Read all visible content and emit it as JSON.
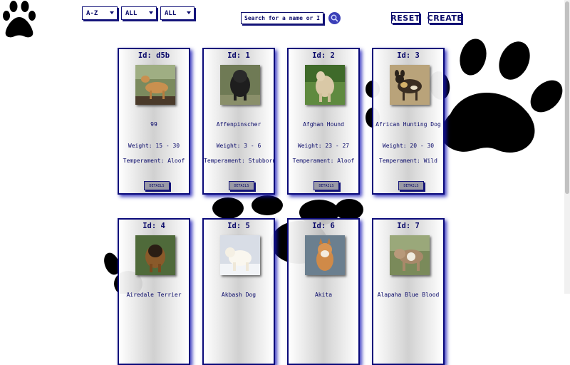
{
  "icons": {
    "logo": "paw-print-icon",
    "search": "magnifier-icon",
    "background": "paw-print-icon"
  },
  "colors": {
    "accent": "#0a0a6a",
    "card_glow": "#1414b4",
    "details_button": "#9a9aa6",
    "search_button": "#3b3fb8"
  },
  "filters": {
    "order": "A-Z",
    "temperament": "ALL",
    "source": "ALL"
  },
  "search": {
    "placeholder": "Search for a name or ID"
  },
  "buttons": {
    "reset": "RESET",
    "create": "CREATE"
  },
  "cards": [
    {
      "id": "Id: d5b",
      "name": "99",
      "weight": "Weight: 15 - 30",
      "temperament": "Temperament: Aloof",
      "details": "DETAILS",
      "photo": "cougar"
    },
    {
      "id": "Id: 1",
      "name": "Affenpinscher",
      "weight": "Weight: 3 - 6",
      "temperament": "Temperament: Stubborn",
      "details": "DETAILS",
      "photo": "affenpinscher"
    },
    {
      "id": "Id: 2",
      "name": "Afghan Hound",
      "weight": "Weight: 23 - 27",
      "temperament": "Temperament: Aloof",
      "details": "DETAILS",
      "photo": "afghan-hound"
    },
    {
      "id": "Id: 3",
      "name": "African Hunting Dog",
      "weight": "Weight: 20 - 30",
      "temperament": "Temperament: Wild",
      "details": "DETAILS",
      "photo": "african-hunting-dog"
    },
    {
      "id": "Id: 4",
      "name": "Airedale Terrier",
      "photo": "airedale-terrier"
    },
    {
      "id": "Id: 5",
      "name": "Akbash Dog",
      "photo": "akbash-dog"
    },
    {
      "id": "Id: 6",
      "name": "Akita",
      "photo": "akita"
    },
    {
      "id": "Id: 7",
      "name": "Alapaha Blue Blood",
      "photo": "alapaha-blue-blood-bulldog"
    }
  ]
}
